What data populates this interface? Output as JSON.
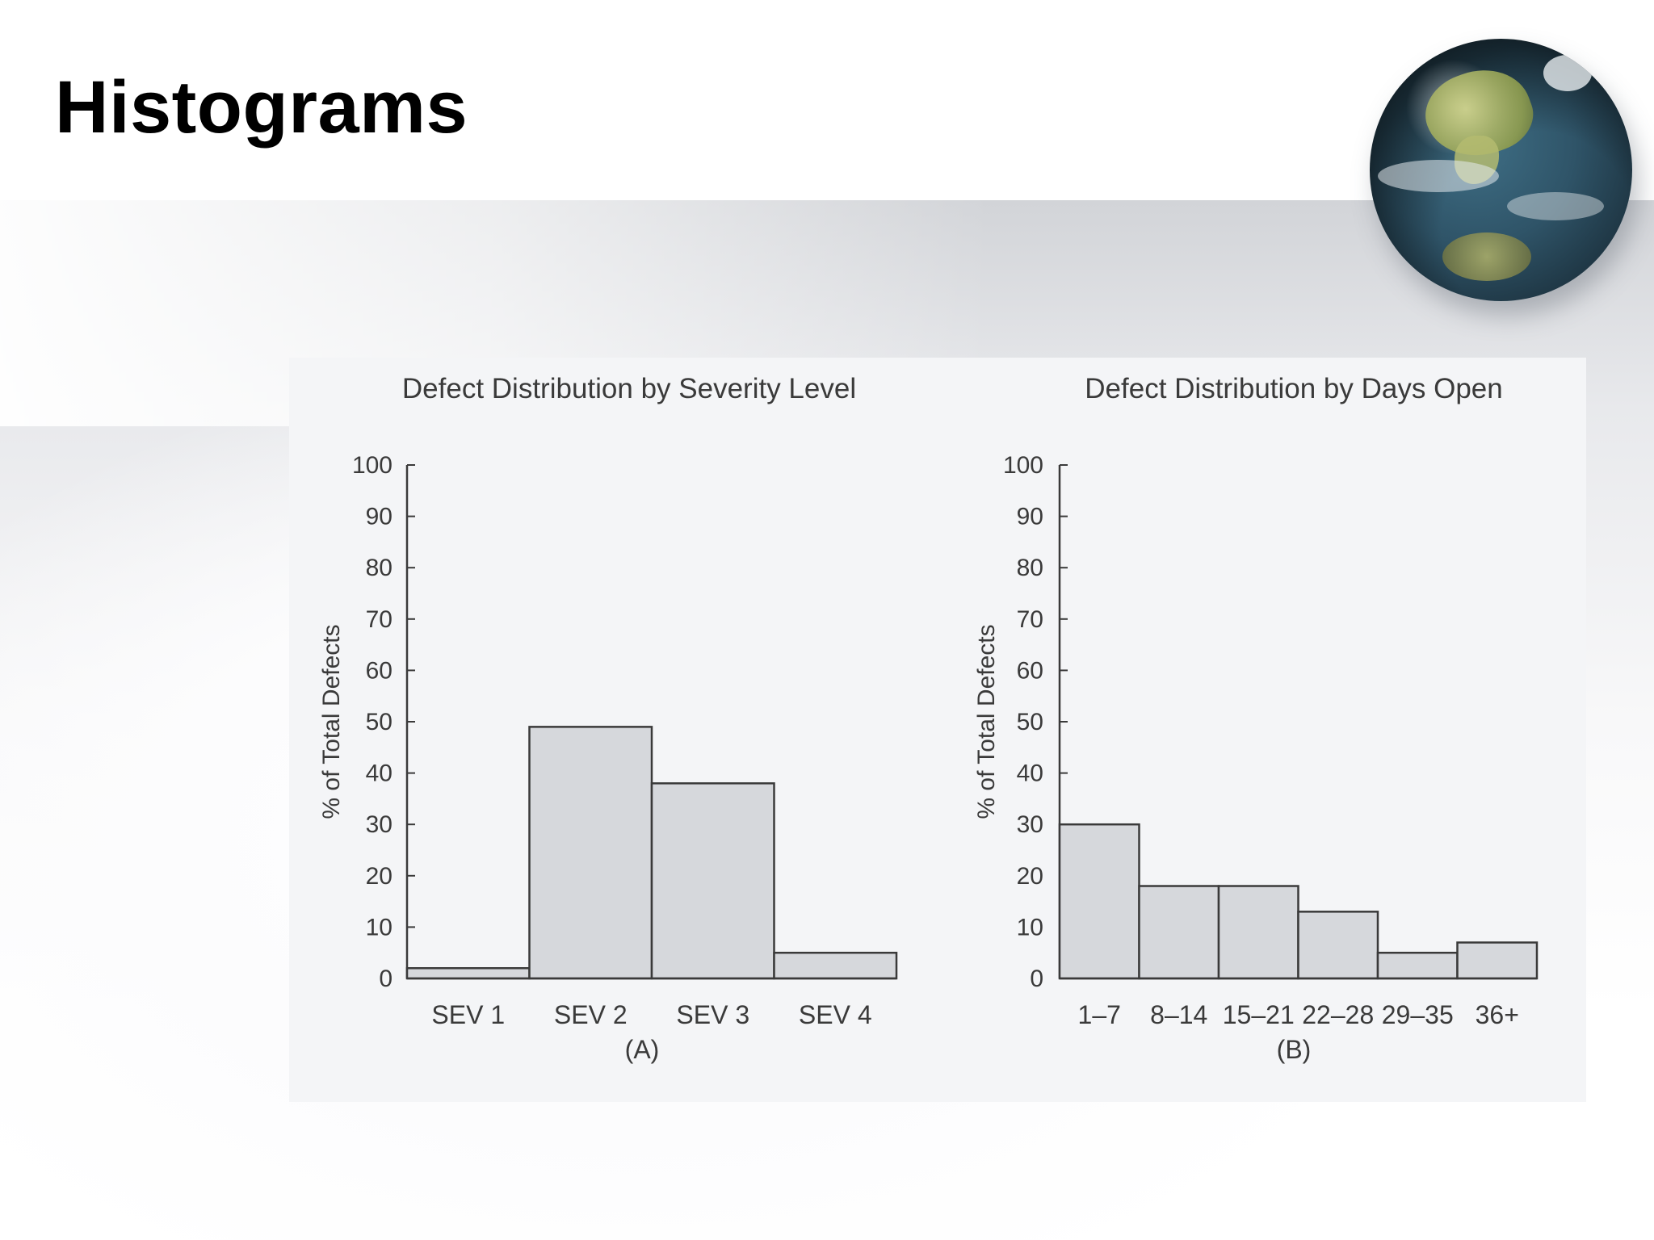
{
  "slide": {
    "title": "Histograms"
  },
  "colors": {
    "bar_fill": "#d6d8dc",
    "bar_stroke": "#3a3a3a",
    "text": "#3a3a3a",
    "figure_bg": "#f4f5f7"
  },
  "icons": {
    "globe": "globe-icon"
  },
  "chart_data": [
    {
      "type": "bar",
      "title": "Defect Distribution by Severity Level",
      "ylabel": "% of Total Defects",
      "xlabel": "",
      "caption": "(A)",
      "categories": [
        "SEV 1",
        "SEV 2",
        "SEV 3",
        "SEV 4"
      ],
      "values": [
        2,
        49,
        38,
        5
      ],
      "ylim": [
        0,
        100
      ],
      "yticks": [
        0,
        10,
        20,
        30,
        40,
        50,
        60,
        70,
        80,
        90,
        100
      ],
      "grid": false
    },
    {
      "type": "bar",
      "title": "Defect Distribution by Days Open",
      "ylabel": "% of Total Defects",
      "xlabel": "",
      "caption": "(B)",
      "categories": [
        "1–7",
        "8–14",
        "15–21",
        "22–28",
        "29–35",
        "36+"
      ],
      "values": [
        30,
        18,
        18,
        13,
        5,
        7
      ],
      "ylim": [
        0,
        100
      ],
      "yticks": [
        0,
        10,
        20,
        30,
        40,
        50,
        60,
        70,
        80,
        90,
        100
      ],
      "grid": false
    }
  ]
}
